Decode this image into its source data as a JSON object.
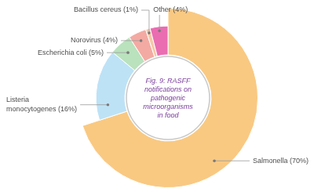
{
  "chart_data": {
    "type": "doughnut",
    "title": "Fig. 9: RASFF notifications on pathogenic microorganisms in food",
    "categories": [
      "Salmonella (70%)",
      "Listeria monocytogenes (16%)",
      "Escherichia coli (5%)",
      "Norovirus (4%)",
      "Bacillus cereus (1%)",
      "Other (4%)"
    ],
    "values": [
      70,
      16,
      5,
      4,
      1,
      4
    ],
    "colors": [
      "#f9c982",
      "#bde2f6",
      "#b9e2bd",
      "#f3aaa3",
      "#f6c8a6",
      "#ea6db1"
    ]
  }
}
